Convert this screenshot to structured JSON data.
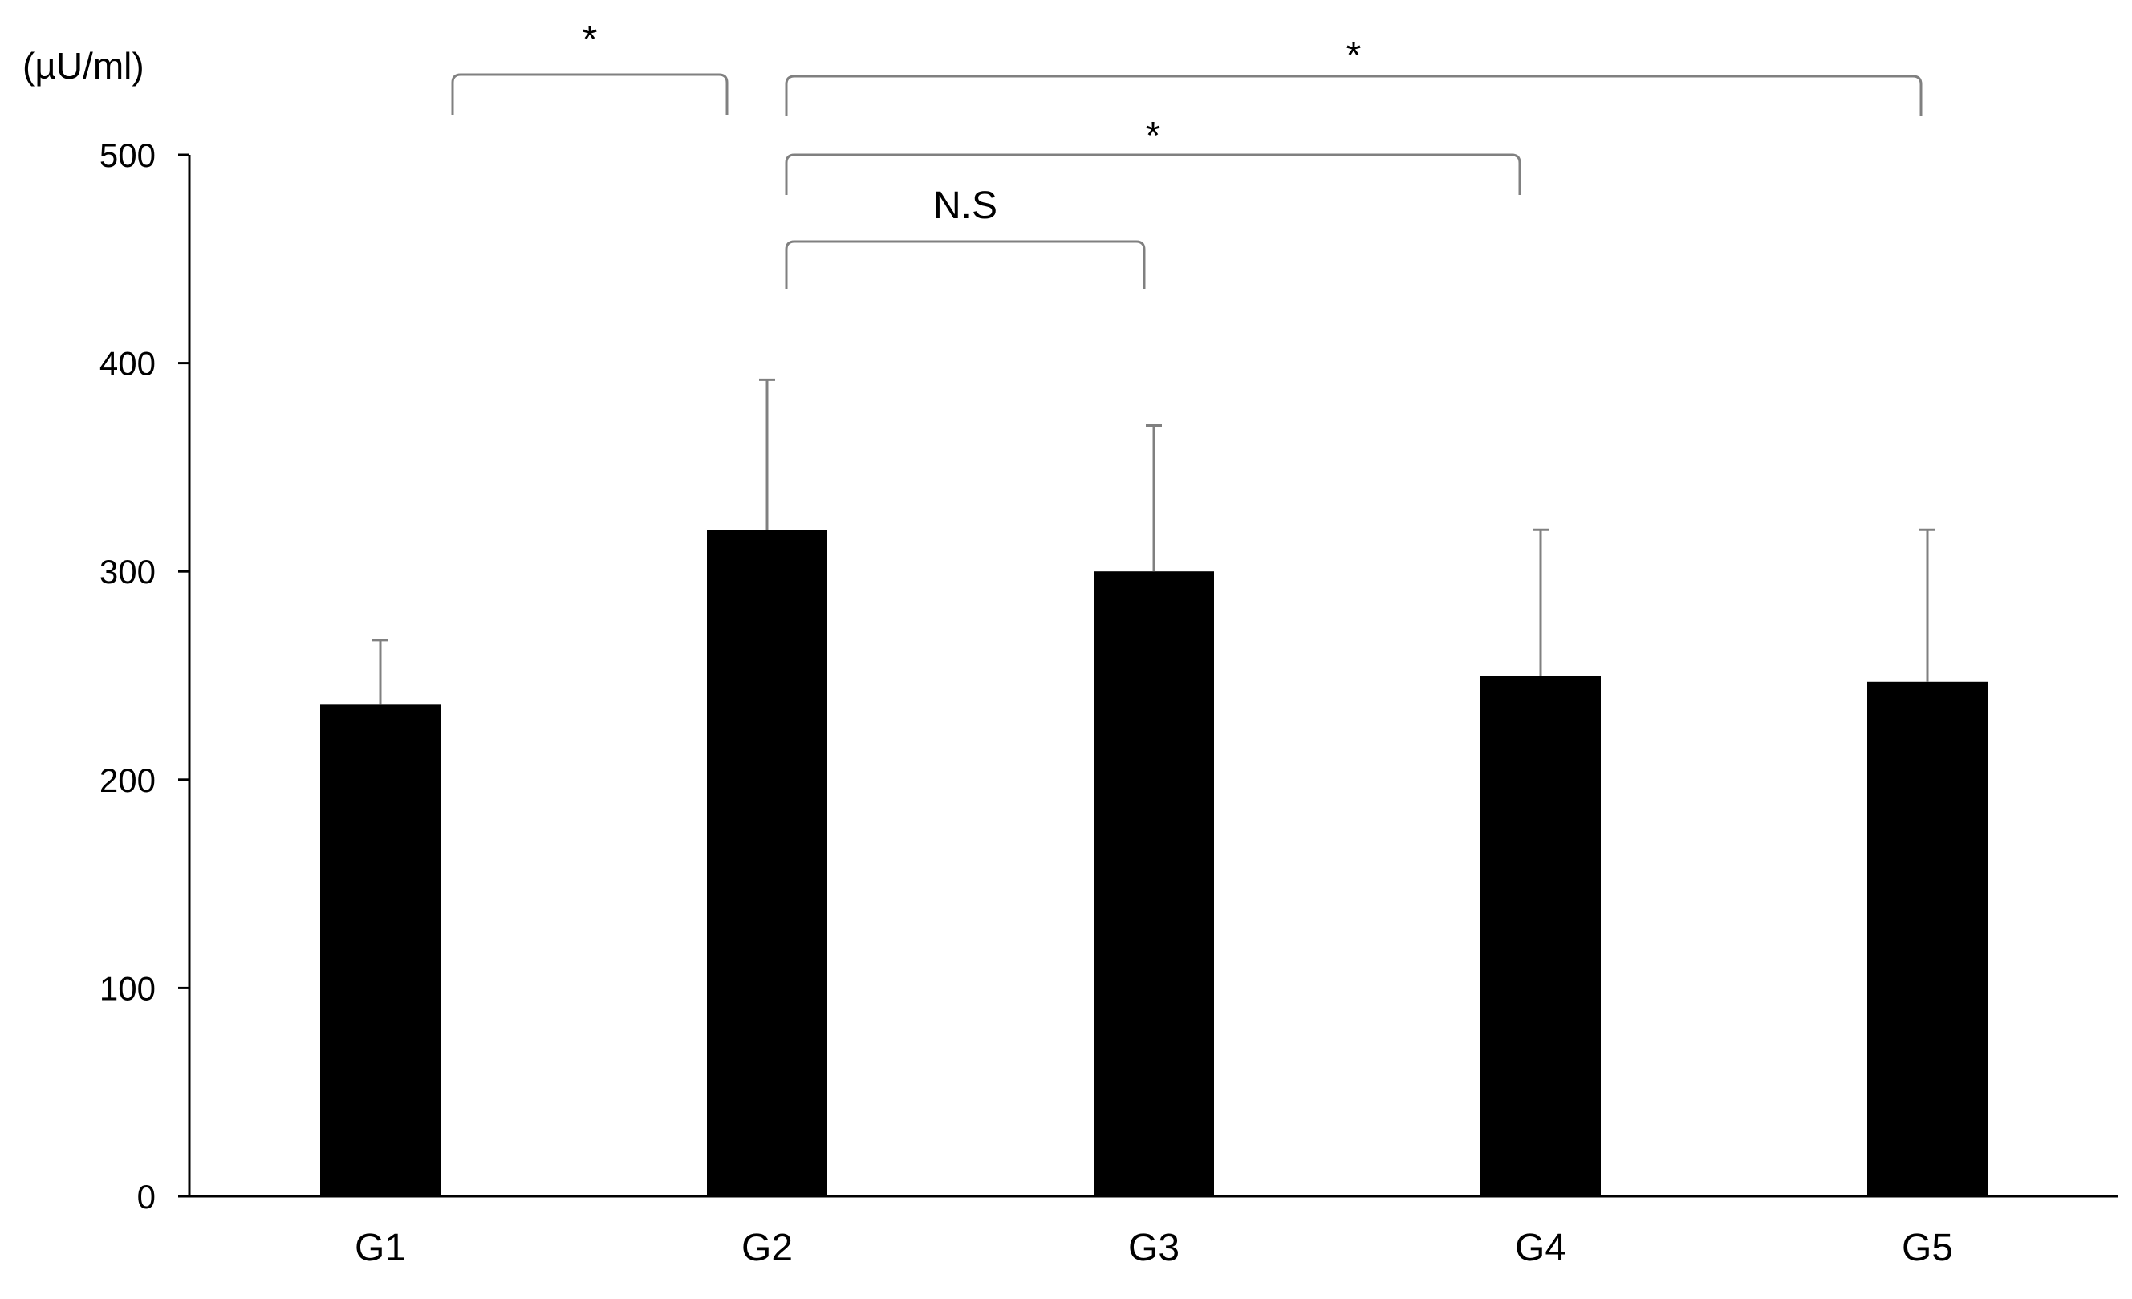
{
  "chart_data": {
    "type": "bar",
    "title": "",
    "xlabel": "",
    "ylabel": "(µU/ml)",
    "categories": [
      "G1",
      "G2",
      "G3",
      "G4",
      "G5"
    ],
    "series": [
      {
        "values": [
          236,
          320,
          300,
          250,
          247
        ],
        "error_plus": [
          31,
          72,
          70,
          70,
          73
        ]
      }
    ],
    "ylim": [
      0,
      500
    ],
    "yticks": [
      "0",
      "100",
      "200",
      "300",
      "400",
      "500"
    ],
    "grid": false,
    "legend": "none",
    "colors": {
      "bar": "#000000",
      "axis": "#000000",
      "error_bar": "#808080",
      "bracket": "#808080"
    },
    "significance": [
      {
        "from": "G1",
        "to": "G2",
        "label": "*"
      },
      {
        "from": "G2",
        "to": "G5",
        "label": "*"
      },
      {
        "from": "G2",
        "to": "G4",
        "label": "*"
      },
      {
        "from": "G2",
        "to": "G3",
        "label": "N.S"
      }
    ]
  }
}
